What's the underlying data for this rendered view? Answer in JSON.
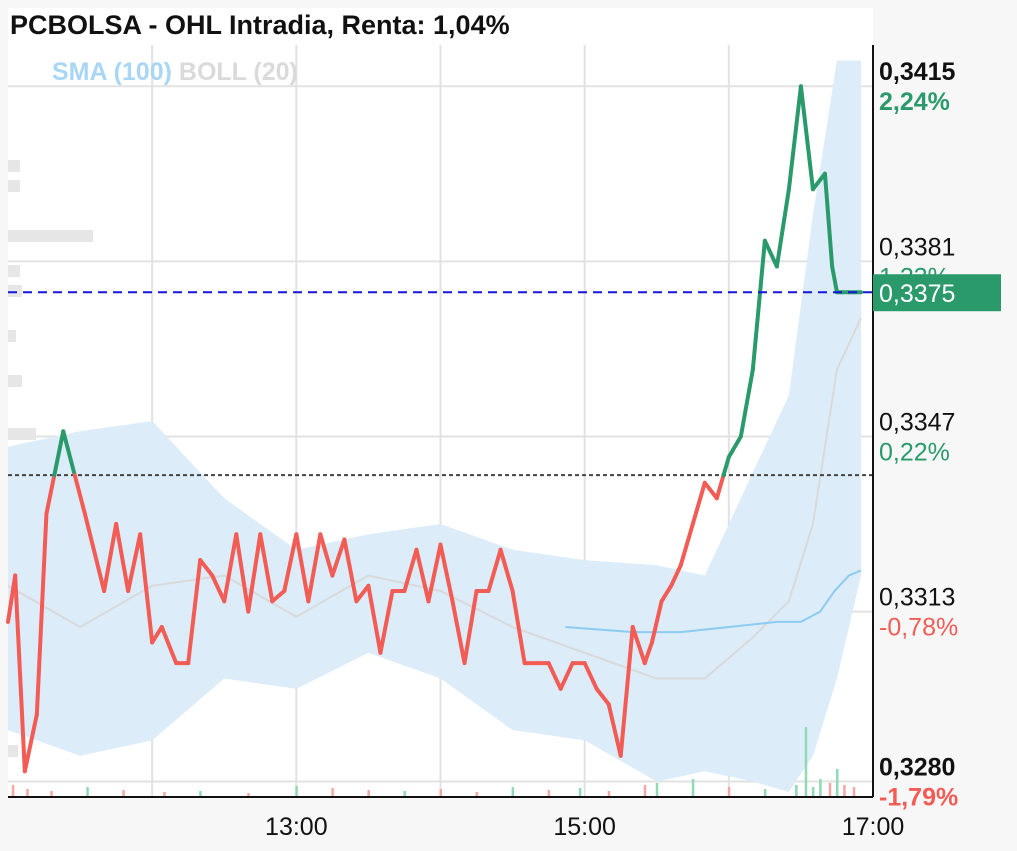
{
  "title": "PCBOLSA - OHL Intradia, Renta: 1,04%",
  "legend": {
    "sma": "SMA (100)",
    "boll": "BOLL (20)"
  },
  "colors": {
    "up": "#2a9a6b",
    "down": "#f25c55",
    "band": "#dcecf9",
    "sma": "#8ccbf2",
    "last_line": "#1515e0",
    "ref_line": "#444444"
  },
  "chart_data": {
    "type": "line",
    "title": "PCBOLSA - OHL Intradia, Renta: 1,04%",
    "x_ticks": [
      "13:00",
      "15:00",
      "17:00"
    ],
    "xlim": [
      "11:00",
      "17:00"
    ],
    "ylim": [
      0.3277,
      0.3423
    ],
    "reference_price": 0.33395,
    "last_price": "0,3375",
    "y_ticks": [
      {
        "price": 0.3415,
        "label": "0,3415",
        "pct": "2,24%",
        "bold": true,
        "pct_color": "up"
      },
      {
        "price": 0.3381,
        "label": "0,3381",
        "pct": "1,23%",
        "bold": false,
        "pct_color": "up"
      },
      {
        "price": 0.3347,
        "label": "0,3347",
        "pct": "0,22%",
        "bold": false,
        "pct_color": "up"
      },
      {
        "price": 0.3313,
        "label": "0,3313",
        "pct": "-0,78%",
        "bold": false,
        "pct_color": "down"
      },
      {
        "price": 0.328,
        "label": "0,3280",
        "pct": "-1,79%",
        "bold": true,
        "pct_color": "down"
      }
    ],
    "price_series": {
      "name": "OHL",
      "time": [
        "11:00",
        "11:03",
        "11:07",
        "11:12",
        "11:16",
        "11:23",
        "11:32",
        "11:40",
        "11:45",
        "11:50",
        "11:55",
        "12:00",
        "12:04",
        "12:10",
        "12:15",
        "12:20",
        "12:25",
        "12:30",
        "12:35",
        "12:40",
        "12:45",
        "12:50",
        "12:55",
        "13:00",
        "13:05",
        "13:10",
        "13:15",
        "13:20",
        "13:25",
        "13:30",
        "13:35",
        "13:40",
        "13:45",
        "13:50",
        "13:55",
        "14:00",
        "14:05",
        "14:10",
        "14:15",
        "14:20",
        "14:25",
        "14:30",
        "14:35",
        "14:40",
        "14:45",
        "14:50",
        "14:55",
        "15:00",
        "15:05",
        "15:10",
        "15:15",
        "15:20",
        "15:25",
        "15:28",
        "15:32",
        "15:36",
        "15:40",
        "15:45",
        "15:50",
        "15:55",
        "16:00",
        "16:05",
        "16:10",
        "16:15",
        "16:20",
        "16:25",
        "16:30",
        "16:35",
        "16:40",
        "16:43",
        "16:45",
        "16:47",
        "16:50",
        "16:52",
        "16:55"
      ],
      "price": [
        0.3311,
        0.332,
        0.3282,
        0.3293,
        0.3332,
        0.3348,
        0.3332,
        0.3317,
        0.333,
        0.3317,
        0.3328,
        0.3307,
        0.331,
        0.3303,
        0.3303,
        0.3323,
        0.332,
        0.3315,
        0.3328,
        0.3313,
        0.3328,
        0.3315,
        0.3317,
        0.3328,
        0.3315,
        0.3328,
        0.332,
        0.3327,
        0.3315,
        0.3318,
        0.3305,
        0.3317,
        0.3317,
        0.3325,
        0.3315,
        0.3326,
        0.3315,
        0.3303,
        0.3317,
        0.3317,
        0.3325,
        0.3317,
        0.3303,
        0.3303,
        0.3303,
        0.3298,
        0.3303,
        0.3303,
        0.3298,
        0.3295,
        0.3285,
        0.331,
        0.3303,
        0.3307,
        0.3315,
        0.3318,
        0.3322,
        0.333,
        0.3338,
        0.3335,
        0.3343,
        0.3347,
        0.336,
        0.3385,
        0.338,
        0.3395,
        0.3415,
        0.3395,
        0.3398,
        0.338,
        0.3375,
        0.3375,
        0.3375,
        0.3375,
        0.3375
      ]
    },
    "sma_series": {
      "name": "SMA (100)",
      "time": [
        "14:52",
        "15:20",
        "15:40",
        "16:00",
        "16:20",
        "16:30",
        "16:38",
        "16:44",
        "16:50",
        "16:55"
      ],
      "price": [
        0.331,
        0.3309,
        0.3309,
        0.331,
        0.3311,
        0.3311,
        0.3313,
        0.3317,
        0.332,
        0.3321
      ]
    },
    "boll_series": {
      "name": "BOLL (20)",
      "time": [
        "11:00",
        "11:30",
        "12:00",
        "12:30",
        "13:00",
        "13:30",
        "14:00",
        "14:30",
        "15:00",
        "15:30",
        "15:50",
        "16:10",
        "16:25",
        "16:35",
        "16:45",
        "16:55"
      ],
      "upper": [
        0.3345,
        0.3348,
        0.335,
        0.3335,
        0.3325,
        0.3328,
        0.333,
        0.3325,
        0.3323,
        0.3322,
        0.332,
        0.334,
        0.3355,
        0.339,
        0.342,
        0.342
      ],
      "middle": [
        0.3318,
        0.331,
        0.3318,
        0.332,
        0.3312,
        0.332,
        0.3317,
        0.331,
        0.3305,
        0.33,
        0.33,
        0.3308,
        0.3315,
        0.333,
        0.336,
        0.337
      ],
      "lower": [
        0.329,
        0.3285,
        0.3288,
        0.33,
        0.3298,
        0.3305,
        0.33,
        0.329,
        0.3288,
        0.328,
        0.3282,
        0.328,
        0.3278,
        0.3285,
        0.33,
        0.332
      ]
    },
    "volume_series": {
      "time": [
        "11:02",
        "11:08",
        "11:18",
        "11:33",
        "11:48",
        "12:05",
        "12:20",
        "12:40",
        "13:00",
        "13:15",
        "13:30",
        "13:45",
        "14:00",
        "14:15",
        "14:30",
        "14:45",
        "14:58",
        "15:10",
        "15:25",
        "15:30",
        "15:45",
        "16:00",
        "16:15",
        "16:28",
        "16:32",
        "16:35",
        "16:38",
        "16:42",
        "16:45",
        "16:48",
        "16:52"
      ],
      "value": [
        12,
        8,
        6,
        10,
        7,
        5,
        6,
        4,
        11,
        9,
        7,
        6,
        8,
        5,
        10,
        7,
        9,
        6,
        12,
        14,
        18,
        10,
        8,
        12,
        70,
        10,
        18,
        14,
        28,
        12,
        10
      ],
      "direction": [
        "down",
        "down",
        "down",
        "up",
        "down",
        "down",
        "up",
        "down",
        "up",
        "down",
        "down",
        "up",
        "down",
        "down",
        "up",
        "down",
        "up",
        "down",
        "down",
        "up",
        "up",
        "down",
        "up",
        "up",
        "up",
        "up",
        "up",
        "down",
        "up",
        "down",
        "down"
      ]
    }
  }
}
